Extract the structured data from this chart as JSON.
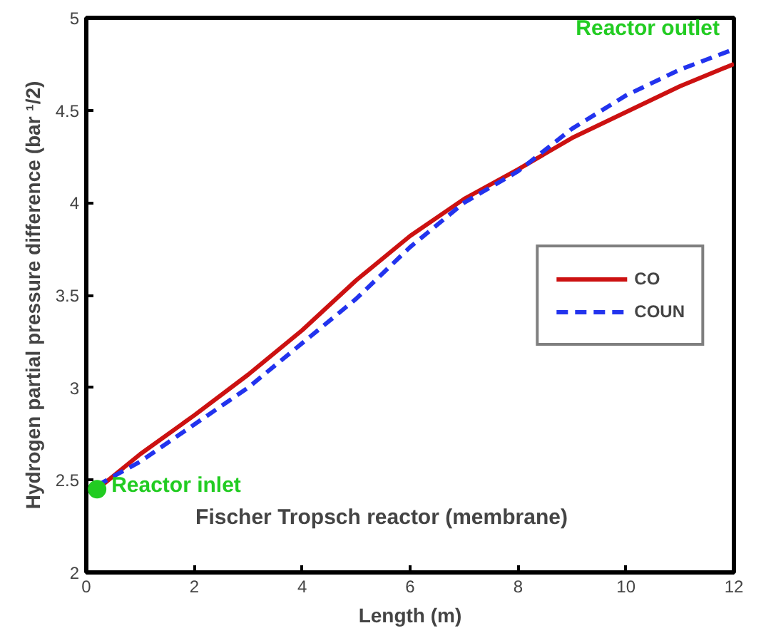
{
  "chart_data": {
    "type": "line",
    "xlabel": "Length (m)",
    "ylabel": "Hydrogen partial pressure difference (bar ¹/2)",
    "x": [
      0.2,
      1,
      2,
      3,
      4,
      5,
      6,
      7,
      8,
      9,
      10,
      11,
      12
    ],
    "series": [
      {
        "name": "CO",
        "color": "#cc1111",
        "line_style": "solid",
        "values": [
          2.45,
          2.64,
          2.85,
          3.07,
          3.31,
          3.58,
          3.82,
          4.02,
          4.18,
          4.35,
          4.49,
          4.63,
          4.75
        ]
      },
      {
        "name": "COUN",
        "color": "#2233ee",
        "line_style": "dashed",
        "values": [
          2.47,
          2.6,
          2.8,
          3.0,
          3.24,
          3.48,
          3.76,
          4.0,
          4.17,
          4.4,
          4.58,
          4.72,
          4.83
        ]
      },
      {
        "type": "scatter",
        "color": "#22cc22",
        "marker": "circle",
        "x": [
          0.2
        ],
        "values": [
          2.45
        ]
      }
    ],
    "annotations": [
      {
        "text": "Reactor inlet",
        "x": 0.2,
        "y": 2.45
      },
      {
        "text": "Reactor outlet",
        "x": 12,
        "y": 4.83
      },
      "Fischer Tropsch reactor (membrane)"
    ],
    "xlim": [
      0,
      12
    ],
    "ylim": [
      2,
      5
    ],
    "xticks": [
      0,
      2,
      4,
      6,
      8,
      10,
      12
    ],
    "yticks": [
      2,
      2.5,
      3,
      3.5,
      4,
      4.5,
      5
    ],
    "grid": false,
    "legend": "right"
  }
}
